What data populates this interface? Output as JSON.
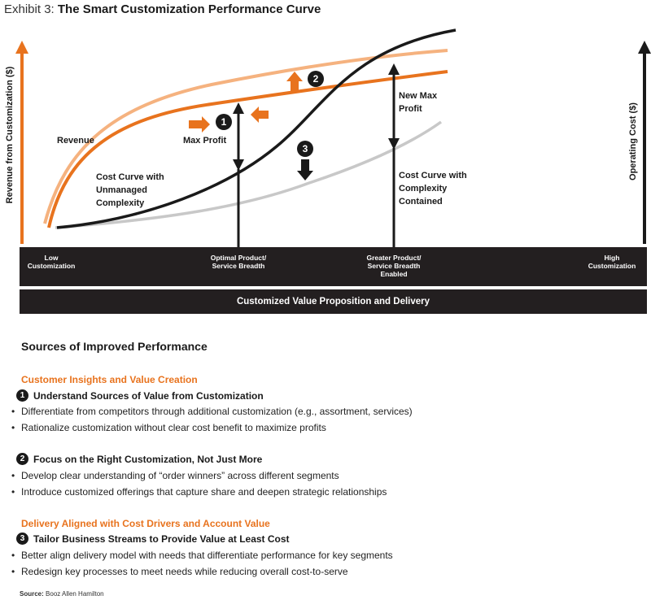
{
  "exhibit": {
    "label": "Exhibit 3:",
    "title": "The Smart Customization Performance Curve"
  },
  "axes": {
    "left": "Revenue from Customization ($)",
    "right": "Operating Cost ($)"
  },
  "annotations": {
    "revenue": "Revenue",
    "max_profit": "Max Profit",
    "cost_unmanaged": [
      "Cost Curve with",
      "Unmanaged",
      "Complexity"
    ],
    "new_max_profit": [
      "New Max",
      "Profit"
    ],
    "cost_contained": [
      "Cost Curve with",
      "Complexity",
      "Contained"
    ]
  },
  "markers": {
    "m1": "1",
    "m2": "2",
    "m3": "3"
  },
  "band_labels": {
    "low": [
      "Low",
      "Customization"
    ],
    "optimal": [
      "Optimal Product/",
      "Service Breadth"
    ],
    "greater": [
      "Greater Product/",
      "Service Breadth",
      "Enabled"
    ],
    "high": [
      "High",
      "Customization"
    ]
  },
  "bottom_bar": "Customized Value Proposition and Delivery",
  "sources": {
    "title": "Sources of Improved Performance",
    "cat1": "Customer Insights and Value Creation",
    "step1": {
      "num": "1",
      "title": "Understand Sources of Value from Customization",
      "bullets": [
        "Differentiate from competitors through additional customization (e.g., assortment, services)",
        "Rationalize customization without clear cost benefit to maximize profits"
      ]
    },
    "step2": {
      "num": "2",
      "title": "Focus on the Right Customization, Not Just More",
      "bullets": [
        "Develop clear understanding of “order winners” across different segments",
        "Introduce customized offerings that capture share and deepen strategic relationships"
      ]
    },
    "cat2": "Delivery Aligned with Cost Drivers and Account Value",
    "step3": {
      "num": "3",
      "title": "Tailor Business Streams to Provide Value at Least Cost",
      "bullets": [
        "Better align delivery model with needs that differentiate performance for key segments",
        "Redesign key processes to meet needs while reducing overall cost-to-serve"
      ]
    }
  },
  "source": {
    "label": "Source:",
    "text": "Booz Allen Hamilton"
  },
  "colors": {
    "orange": "#e8731e",
    "light_orange": "#f5b27f",
    "black": "#1a1a1a",
    "gray": "#c8c8c8"
  }
}
